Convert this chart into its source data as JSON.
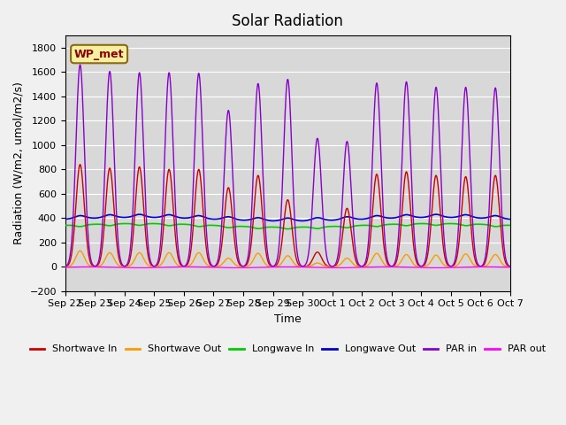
{
  "title": "Solar Radiation",
  "ylabel": "Radiation (W/m2, umol/m2/s)",
  "xlabel": "Time",
  "ylim": [
    -200,
    1900
  ],
  "yticks": [
    -200,
    0,
    200,
    400,
    600,
    800,
    1000,
    1200,
    1400,
    1600,
    1800
  ],
  "background_color": "#e8e8e8",
  "plot_bg_color": "#d8d8d8",
  "legend_labels": [
    "Shortwave In",
    "Shortwave Out",
    "Longwave In",
    "Longwave Out",
    "PAR in",
    "PAR out"
  ],
  "legend_colors": [
    "#cc0000",
    "#ff9900",
    "#00cc00",
    "#0000cc",
    "#8800cc",
    "#ff00ff"
  ],
  "station_label": "WP_met",
  "x_tick_labels": [
    "Sep 22",
    "Sep 23",
    "Sep 24",
    "Sep 25",
    "Sep 26",
    "Sep 27",
    "Sep 28",
    "Sep 29",
    "Sep 30",
    "Oct 1",
    "Oct 2",
    "Oct 3",
    "Oct 4",
    "Oct 5",
    "Oct 6",
    "Oct 7"
  ],
  "n_days": 15,
  "shortwave_in_peaks": [
    840,
    810,
    820,
    800,
    800,
    650,
    750,
    550,
    120,
    480,
    760,
    780,
    750,
    740,
    750
  ],
  "shortwave_out_peaks": [
    130,
    115,
    115,
    115,
    115,
    70,
    110,
    90,
    30,
    70,
    110,
    100,
    95,
    105,
    100
  ],
  "longwave_in_base": 340,
  "longwave_out_base": 390,
  "par_in_peaks": [
    1660,
    1605,
    1595,
    1595,
    1590,
    1285,
    1505,
    1540,
    1055,
    1030,
    1510,
    1520,
    1475,
    1475,
    1470
  ]
}
